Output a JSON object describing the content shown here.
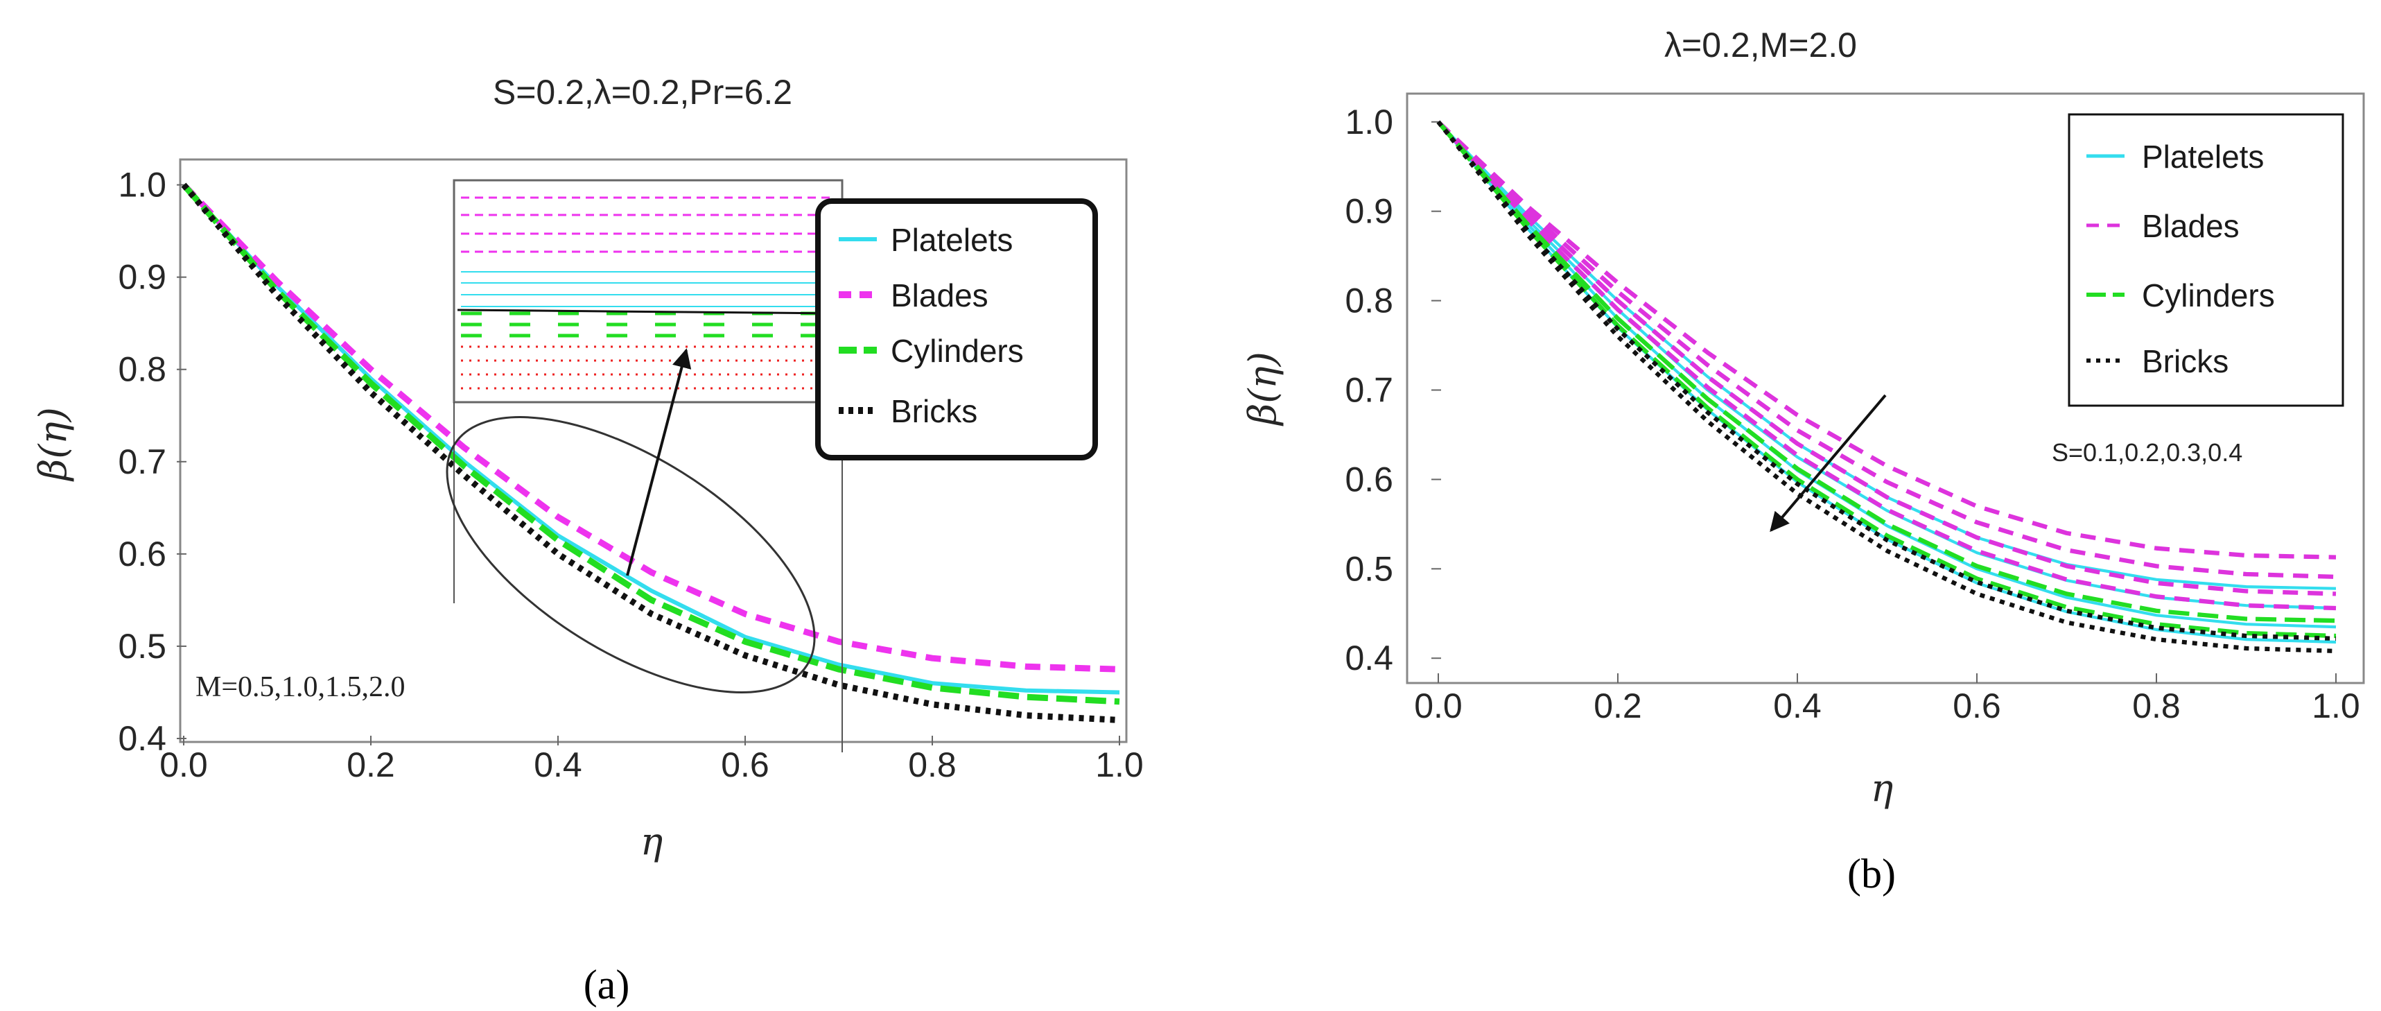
{
  "chart_data": [
    {
      "id": "a",
      "type": "line",
      "title": "S=0.2,λ=0.2,Pr=6.2",
      "xlabel": "η",
      "ylabel": "β(η)",
      "xlim": [
        0.0,
        1.0
      ],
      "ylim": [
        0.4,
        1.02
      ],
      "xticks": [
        "0.0",
        "0.2",
        "0.4",
        "0.6",
        "0.8",
        "1.0"
      ],
      "yticks": [
        "0.4",
        "0.5",
        "0.6",
        "0.7",
        "0.8",
        "0.9",
        "1.0"
      ],
      "legend": [
        "Platelets",
        "Blades",
        "Cylinders",
        "Bricks"
      ],
      "legend_position": "top-right",
      "annotation": "M=0.5,1.0,1.5,2.0",
      "x": [
        0.0,
        0.1,
        0.2,
        0.3,
        0.4,
        0.5,
        0.6,
        0.7,
        0.8,
        0.9,
        1.0
      ],
      "series": [
        {
          "name": "Platelets",
          "style": "solid",
          "color": "#33ddee",
          "values": [
            1.0,
            0.89,
            0.79,
            0.7,
            0.62,
            0.56,
            0.51,
            0.48,
            0.46,
            0.452,
            0.45
          ]
        },
        {
          "name": "Blades",
          "style": "dashed",
          "color": "#ee33ee",
          "values": [
            1.0,
            0.895,
            0.8,
            0.715,
            0.64,
            0.58,
            0.535,
            0.505,
            0.487,
            0.478,
            0.475
          ]
        },
        {
          "name": "Cylinders",
          "style": "longdash",
          "color": "#22dd22",
          "values": [
            1.0,
            0.885,
            0.785,
            0.695,
            0.615,
            0.55,
            0.505,
            0.475,
            0.455,
            0.445,
            0.44
          ]
        },
        {
          "name": "Bricks",
          "style": "dotted",
          "color": "#111111",
          "values": [
            1.0,
            0.88,
            0.775,
            0.685,
            0.6,
            0.535,
            0.49,
            0.458,
            0.437,
            0.425,
            0.42
          ]
        }
      ]
    },
    {
      "id": "b",
      "type": "line",
      "title": "λ=0.2,M=2.0",
      "xlabel": "η",
      "ylabel": "β(η)",
      "xlim": [
        0.0,
        1.0
      ],
      "ylim": [
        0.38,
        1.02
      ],
      "xticks": [
        "0.0",
        "0.2",
        "0.4",
        "0.6",
        "0.8",
        "1.0"
      ],
      "yticks": [
        "0.4",
        "0.5",
        "0.6",
        "0.7",
        "0.8",
        "0.9",
        "1.0"
      ],
      "legend": [
        "Platelets",
        "Blades",
        "Cylinders",
        "Bricks"
      ],
      "legend_position": "top-right",
      "annotation": "S=0.1,0.2,0.3,0.4",
      "x": [
        0.0,
        0.1,
        0.2,
        0.3,
        0.4,
        0.5,
        0.6,
        0.7,
        0.8,
        0.9,
        1.0
      ],
      "series": [
        {
          "name": "Platelets S=0.1",
          "style": "solid",
          "color": "#33ddee",
          "values": [
            1.0,
            0.895,
            0.8,
            0.715,
            0.64,
            0.58,
            0.535,
            0.505,
            0.488,
            0.48,
            0.478
          ]
        },
        {
          "name": "Platelets S=0.2",
          "style": "solid",
          "color": "#33ddee",
          "values": [
            1.0,
            0.89,
            0.79,
            0.7,
            0.625,
            0.565,
            0.518,
            0.487,
            0.468,
            0.459,
            0.456
          ]
        },
        {
          "name": "Platelets S=0.3",
          "style": "solid",
          "color": "#33ddee",
          "values": [
            1.0,
            0.885,
            0.78,
            0.69,
            0.61,
            0.548,
            0.5,
            0.468,
            0.448,
            0.438,
            0.435
          ]
        },
        {
          "name": "Platelets S=0.4",
          "style": "solid",
          "color": "#33ddee",
          "values": [
            1.0,
            0.88,
            0.77,
            0.678,
            0.597,
            0.533,
            0.484,
            0.452,
            0.432,
            0.421,
            0.418
          ]
        },
        {
          "name": "Blades S=0.1",
          "style": "dashed",
          "color": "#dd33dd",
          "values": [
            1.0,
            0.905,
            0.82,
            0.742,
            0.672,
            0.615,
            0.57,
            0.54,
            0.523,
            0.515,
            0.513
          ]
        },
        {
          "name": "Blades S=0.2",
          "style": "dashed",
          "color": "#dd33dd",
          "values": [
            1.0,
            0.9,
            0.81,
            0.728,
            0.655,
            0.597,
            0.552,
            0.521,
            0.503,
            0.494,
            0.491
          ]
        },
        {
          "name": "Blades S=0.3",
          "style": "dashed",
          "color": "#dd33dd",
          "values": [
            1.0,
            0.895,
            0.8,
            0.715,
            0.64,
            0.58,
            0.535,
            0.503,
            0.484,
            0.475,
            0.472
          ]
        },
        {
          "name": "Blades S=0.4",
          "style": "dashed",
          "color": "#dd33dd",
          "values": [
            1.0,
            0.89,
            0.79,
            0.703,
            0.627,
            0.566,
            0.52,
            0.488,
            0.469,
            0.459,
            0.456
          ]
        },
        {
          "name": "Cylinders S=0.1",
          "style": "longdash",
          "color": "#22dd22",
          "values": [
            1.0,
            0.885,
            0.78,
            0.69,
            0.612,
            0.55,
            0.503,
            0.472,
            0.453,
            0.444,
            0.442
          ]
        },
        {
          "name": "Cylinders S=0.2",
          "style": "longdash",
          "color": "#22dd22",
          "values": [
            1.0,
            0.88,
            0.772,
            0.68,
            0.6,
            0.537,
            0.489,
            0.457,
            0.438,
            0.428,
            0.425
          ]
        },
        {
          "name": "Bricks S=0.1",
          "style": "dotted",
          "color": "#111111",
          "values": [
            1.0,
            0.878,
            0.768,
            0.675,
            0.595,
            0.532,
            0.485,
            0.453,
            0.434,
            0.425,
            0.422
          ]
        },
        {
          "name": "Bricks S=0.2",
          "style": "dotted",
          "color": "#111111",
          "values": [
            1.0,
            0.873,
            0.76,
            0.665,
            0.584,
            0.52,
            0.472,
            0.44,
            0.421,
            0.411,
            0.408
          ]
        }
      ]
    }
  ],
  "captions": [
    "(a)",
    "(b)"
  ]
}
